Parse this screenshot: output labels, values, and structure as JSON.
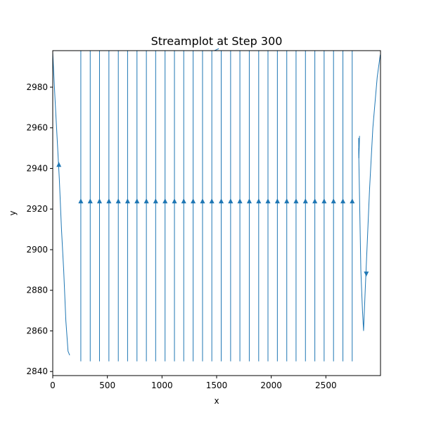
{
  "chart_data": {
    "type": "streamplot",
    "title": "Streamplot at Step 300",
    "xlabel": "x",
    "ylabel": "y",
    "xlim": [
      0,
      3000
    ],
    "ylim": [
      2838,
      2998
    ],
    "x_ticks": [
      0,
      500,
      1000,
      1500,
      2000,
      2500
    ],
    "y_ticks": [
      2840,
      2860,
      2880,
      2900,
      2920,
      2940,
      2960,
      2980
    ],
    "x_tick_labels": [
      "0",
      "500",
      "1000",
      "1500",
      "2000",
      "2500"
    ],
    "y_tick_labels": [
      "2840",
      "2860",
      "2880",
      "2900",
      "2920",
      "2940",
      "2960",
      "2980"
    ],
    "grid": false,
    "legend": "none",
    "colors": {
      "stream": "#1f77b4",
      "axes": "#000000",
      "background": "#ffffff"
    },
    "vertical_streamlines": {
      "x": [
        257,
        343,
        428,
        514,
        600,
        685,
        771,
        857,
        942,
        1028,
        1114,
        1199,
        1285,
        1371,
        1456,
        1542,
        1628,
        1713,
        1799,
        1885,
        1970,
        2056,
        2142,
        2227,
        2313,
        2399,
        2484,
        2570,
        2656,
        2741
      ],
      "y_bottom": 2845,
      "y_top": 2998,
      "arrow_y": 2924,
      "direction": "up"
    },
    "curved_streamlines": [
      {
        "name": "left-descending",
        "points": [
          [
            0,
            2997
          ],
          [
            20,
            2975
          ],
          [
            40,
            2955
          ],
          [
            60,
            2935
          ],
          [
            80,
            2910
          ],
          [
            100,
            2890
          ],
          [
            120,
            2865
          ],
          [
            140,
            2850
          ],
          [
            155,
            2848
          ]
        ],
        "arrows": [
          {
            "x": 56,
            "y": 2942,
            "direction": "up"
          }
        ]
      },
      {
        "name": "right-valley",
        "points": [
          [
            2800,
            2950
          ],
          [
            2810,
            2920
          ],
          [
            2820,
            2890
          ],
          [
            2835,
            2870
          ],
          [
            2845,
            2860
          ],
          [
            2860,
            2880
          ],
          [
            2880,
            2905
          ],
          [
            2900,
            2930
          ],
          [
            2930,
            2960
          ],
          [
            2970,
            2985
          ],
          [
            2998,
            2996
          ]
        ],
        "arrows": [
          {
            "x": 2870,
            "y": 2888,
            "direction": "down"
          }
        ]
      },
      {
        "name": "right-stub",
        "points": [
          [
            2800,
            2955
          ],
          [
            2802,
            2945
          ],
          [
            2805,
            2950
          ],
          [
            2808,
            2956
          ]
        ],
        "arrows": []
      },
      {
        "name": "top-short",
        "points": [
          [
            1480,
            2998
          ],
          [
            1520,
            2999
          ]
        ],
        "arrows": []
      }
    ]
  }
}
